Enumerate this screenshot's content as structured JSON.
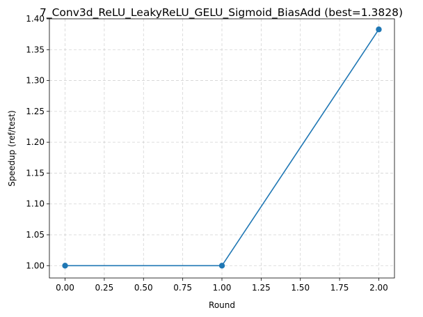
{
  "chart_data": {
    "type": "line",
    "title": "7_Conv3d_ReLU_LeakyReLU_GELU_Sigmoid_BiasAdd (best=1.3828)",
    "xlabel": "Round",
    "ylabel": "Speedup (ref/test)",
    "xlim": [
      -0.1,
      2.1
    ],
    "ylim": [
      0.98,
      1.4
    ],
    "xticks": [
      "0.00",
      "0.25",
      "0.50",
      "0.75",
      "1.00",
      "1.25",
      "1.50",
      "1.75",
      "2.00"
    ],
    "yticks": [
      "1.00",
      "1.05",
      "1.10",
      "1.15",
      "1.20",
      "1.25",
      "1.30",
      "1.35",
      "1.40"
    ],
    "grid": true,
    "series": [
      {
        "x": [
          0,
          1,
          2
        ],
        "y": [
          1.0,
          1.0,
          1.3828
        ],
        "color": "#1f77b4",
        "marker": "circle"
      }
    ]
  }
}
